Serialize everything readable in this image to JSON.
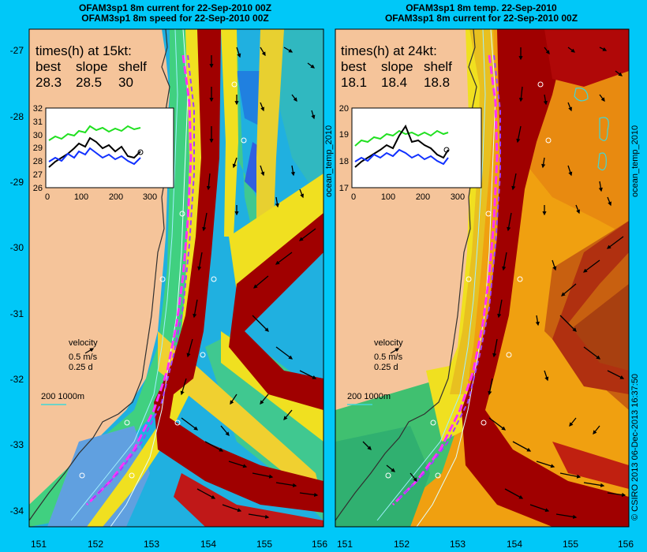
{
  "panels": [
    {
      "id": "speed",
      "title_line1": "OFAM3sp1 8m current for 22-Sep-2010 00Z",
      "title_line2": "OFAM3sp1 8m speed for 22-Sep-2010 00Z",
      "times_heading": "times(h) at 15kt:",
      "times_labels": [
        "best",
        "slope",
        "shelf"
      ],
      "times_values": [
        "28.3",
        "28.5",
        "30"
      ],
      "inset_yticks": [
        "32",
        "31",
        "30",
        "29",
        "28",
        "27",
        "26"
      ],
      "inset_xticks": [
        "0",
        "100",
        "200",
        "300"
      ],
      "velocity_label": "velocity",
      "velocity_speed": "0.5 m/s",
      "velocity_time": "0.25 d",
      "depth_legend": "200  1000m",
      "side_label": "ocean_temp_2010"
    },
    {
      "id": "temp",
      "title_line1": "OFAM3sp1 8m temp. 22-Sep-2010",
      "title_line2": "OFAM3sp1 8m current for 22-Sep-2010 00Z",
      "times_heading": "times(h) at 24kt:",
      "times_labels": [
        "best",
        "slope",
        "shelf"
      ],
      "times_values": [
        "18.1",
        "18.4",
        "18.8"
      ],
      "inset_yticks": [
        "20",
        "19",
        "18",
        "17"
      ],
      "inset_xticks": [
        "0",
        "100",
        "200",
        "300"
      ],
      "velocity_label": "velocity",
      "velocity_speed": "0.5 m/s",
      "velocity_time": "0.25 d",
      "depth_legend": "200  1000m",
      "side_label": "ocean_temp_2010"
    }
  ],
  "lat_ticks": [
    "-27",
    "-28",
    "-29",
    "-30",
    "-31",
    "-32",
    "-33",
    "-34"
  ],
  "lon_ticks_left": [
    "151",
    "152",
    "153",
    "154",
    "155",
    "156"
  ],
  "lon_ticks_right": [
    "151",
    "152",
    "153",
    "154",
    "155",
    "156"
  ],
  "credit": "© CSIRO 2013   06-Dec-2013 16:37:50",
  "colors": {
    "background": "#00c8f8",
    "land": "#f5c49a",
    "current_core": "#a00000",
    "route_best": "#ff30ff",
    "route_shelf": "#a040ff"
  }
}
